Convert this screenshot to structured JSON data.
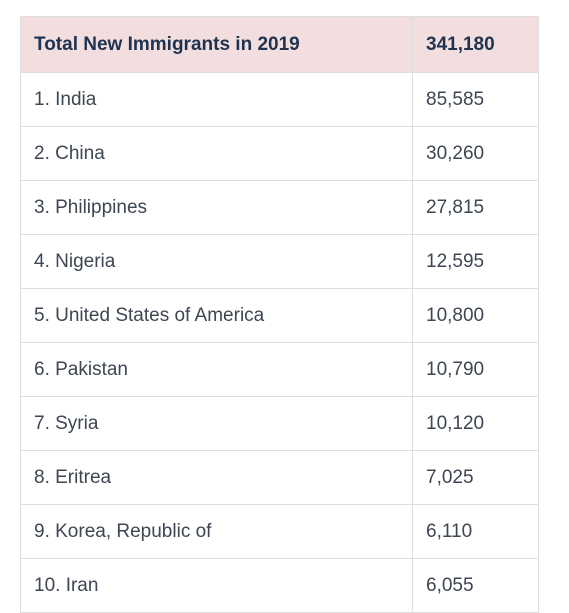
{
  "table": {
    "header": {
      "label": "Total New Immigrants in 2019",
      "value": "341,180"
    },
    "rows": [
      {
        "country": "1. India",
        "count": "85,585"
      },
      {
        "country": "2. China",
        "count": "30,260"
      },
      {
        "country": "3. Philippines",
        "count": "27,815"
      },
      {
        "country": "4. Nigeria",
        "count": "12,595"
      },
      {
        "country": "5. United States of America",
        "count": "10,800"
      },
      {
        "country": "6. Pakistan",
        "count": "10,790"
      },
      {
        "country": "7. Syria",
        "count": "10,120"
      },
      {
        "country": "8. Eritrea",
        "count": "7,025"
      },
      {
        "country": "9. Korea, Republic of",
        "count": "6,110"
      },
      {
        "country": "10. Iran",
        "count": "6,055"
      }
    ]
  },
  "colors": {
    "header_bg": "#f2dede",
    "header_text": "#1f3350",
    "body_text": "#3d4652",
    "border": "#dedede"
  }
}
